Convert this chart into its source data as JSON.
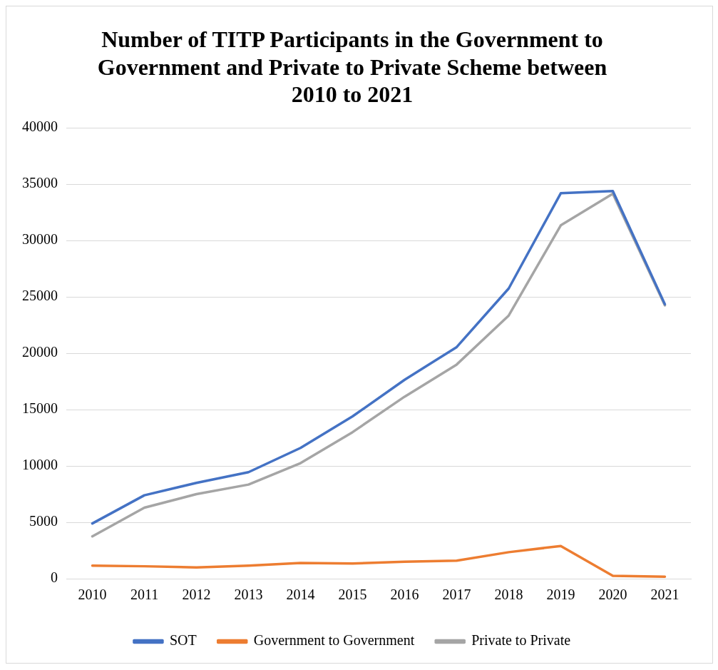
{
  "chart_data": {
    "type": "line",
    "title": "Number of TITP Participants in the Government to Government and Private to Private Scheme between 2010 to 2021",
    "categories": [
      "2010",
      "2011",
      "2012",
      "2013",
      "2014",
      "2015",
      "2016",
      "2017",
      "2018",
      "2019",
      "2020",
      "2021"
    ],
    "series": [
      {
        "name": "SOT",
        "color": "#4472c4",
        "values": [
          4900,
          7400,
          8500,
          9450,
          11600,
          14400,
          17650,
          20550,
          25750,
          34200,
          34400,
          24350
        ]
      },
      {
        "name": "Government to Government",
        "color": "#ed7d31",
        "values": [
          1150,
          1100,
          1000,
          1150,
          1400,
          1350,
          1500,
          1600,
          2350,
          2900,
          250,
          180
        ]
      },
      {
        "name": "Private to Private",
        "color": "#a5a5a5",
        "values": [
          3750,
          6300,
          7500,
          8350,
          10250,
          13000,
          16150,
          19000,
          23350,
          31350,
          34150,
          24250
        ]
      }
    ],
    "ylim": [
      0,
      40000
    ],
    "yticks": [
      0,
      5000,
      10000,
      15000,
      20000,
      25000,
      30000,
      35000,
      40000
    ],
    "grid": "y",
    "legend": "bottom",
    "marker": "none",
    "line_style": "solid"
  }
}
